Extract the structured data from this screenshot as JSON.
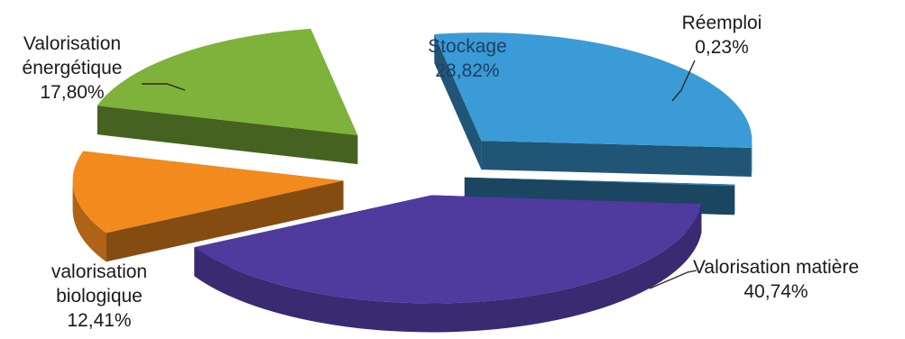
{
  "chart_data": {
    "type": "pie",
    "style": "3d-exploded",
    "title": "",
    "slices": [
      {
        "label": "Stockage",
        "label_lines": [
          "Stockage"
        ],
        "value_text": "28,82%",
        "value": 28.82,
        "color": "#3a9bd6",
        "label_position": "inside"
      },
      {
        "label": "Réemploi",
        "label_lines": [
          "Réemploi"
        ],
        "value_text": "0,23%",
        "value": 0.23,
        "color": "#2f7fb2",
        "label_position": "outside-top-right"
      },
      {
        "label": "Valorisation matière",
        "label_lines": [
          "Valorisation matière"
        ],
        "value_text": "40,74%",
        "value": 40.74,
        "color": "#4f3a9e",
        "label_position": "outside-right"
      },
      {
        "label": "valorisation biologique",
        "label_lines": [
          "valorisation",
          "biologique"
        ],
        "value_text": "12,41%",
        "value": 12.41,
        "color": "#f28a1e",
        "label_position": "outside-bottom-left"
      },
      {
        "label": "Valorisation énergétique",
        "label_lines": [
          "Valorisation",
          "énergétique"
        ],
        "value_text": "17,80%",
        "value": 17.8,
        "color": "#7fb23a",
        "label_position": "outside-top-left"
      }
    ]
  }
}
